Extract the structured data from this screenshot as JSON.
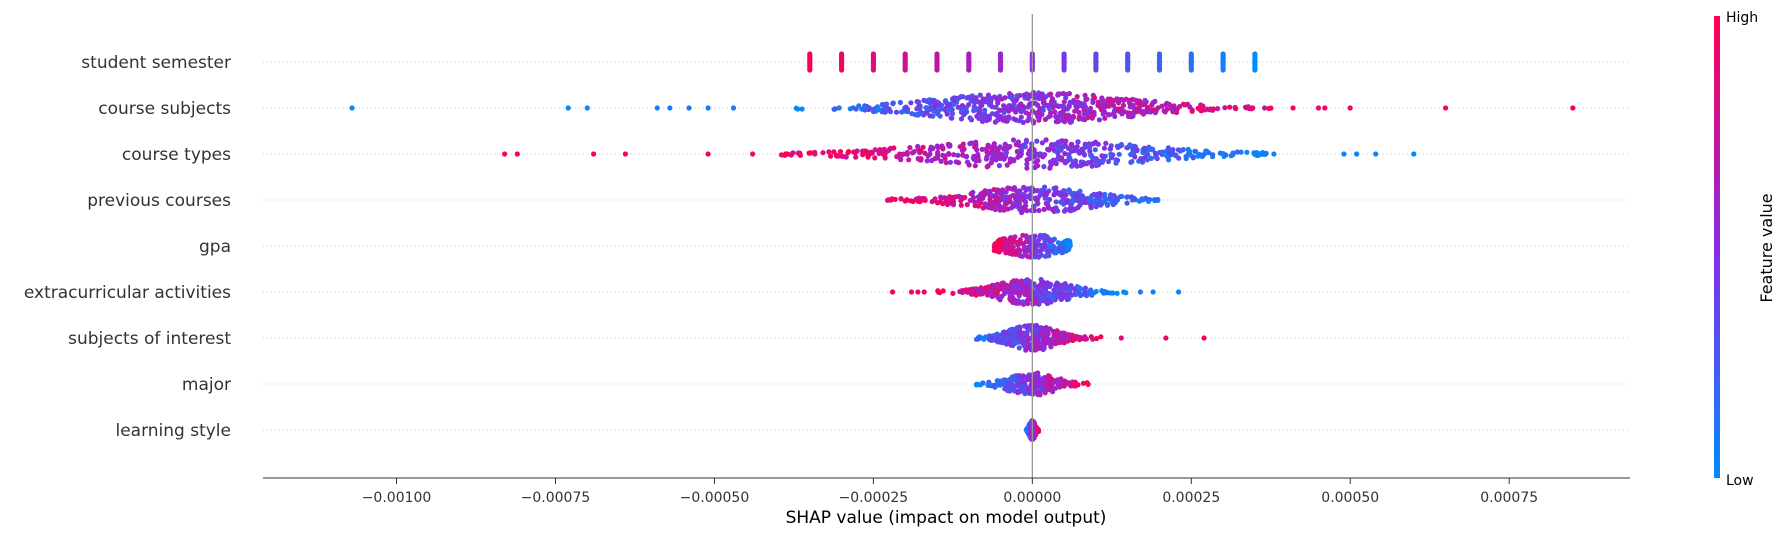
{
  "chart_data": {
    "type": "scatter",
    "subtype": "shap-beeswarm-summary",
    "xlabel": "SHAP value (impact on model output)",
    "xlim": [
      -0.00121,
      0.00094
    ],
    "x_ticks": [
      -0.001,
      -0.00075,
      -0.0005,
      -0.00025,
      0.0,
      0.00025,
      0.0005,
      0.00075
    ],
    "x_tick_labels": [
      "−0.00100",
      "−0.00075",
      "−0.00050",
      "−0.00025",
      "0.00000",
      "0.00025",
      "0.00050",
      "0.00075"
    ],
    "grid": false,
    "colorbar": {
      "title": "Feature value",
      "high_label": "High",
      "low_label": "Low",
      "low_color": "#008bfb",
      "mid_color": "#8a2be2",
      "high_color": "#ff0051"
    },
    "zero_line_color": "#999999",
    "features": [
      {
        "name": "student semester",
        "columns": [
          [
            -0.00035,
            1.0
          ],
          [
            -0.0003,
            0.93
          ],
          [
            -0.00025,
            0.86
          ],
          [
            -0.0002,
            0.79
          ],
          [
            -0.00015,
            0.72
          ],
          [
            -0.0001,
            0.64
          ],
          [
            -5e-05,
            0.57
          ],
          [
            0.0,
            0.5
          ],
          [
            5e-05,
            0.43
          ],
          [
            0.0001,
            0.36
          ],
          [
            0.00015,
            0.29
          ],
          [
            0.0002,
            0.21
          ],
          [
            0.00025,
            0.14
          ],
          [
            0.0003,
            0.07
          ],
          [
            0.00035,
            0.0
          ]
        ],
        "min": -0.00035,
        "max": 0.00035
      },
      {
        "name": "course subjects",
        "outliers": [
          [
            -0.00107,
            0.0
          ],
          [
            -0.00073,
            0.03
          ],
          [
            -0.0007,
            0.02
          ],
          [
            -0.00059,
            0.05
          ],
          [
            -0.00057,
            0.04
          ],
          [
            -0.00054,
            0.06
          ],
          [
            -0.00051,
            0.05
          ],
          [
            -0.00047,
            0.08
          ],
          [
            0.00041,
            0.95
          ],
          [
            0.00045,
            0.92
          ],
          [
            0.00046,
            0.96
          ],
          [
            0.0005,
            0.93
          ],
          [
            0.00065,
            0.98
          ],
          [
            0.00085,
            1.0
          ]
        ],
        "min": -0.00044,
        "max": 0.00038,
        "spread": 0.00016,
        "density": 2.2,
        "skew": 1
      },
      {
        "name": "course types",
        "outliers": [
          [
            -0.00083,
            1.0
          ],
          [
            -0.00081,
            0.98
          ],
          [
            -0.00069,
            0.96
          ],
          [
            -0.00064,
            0.97
          ],
          [
            -0.00051,
            0.94
          ],
          [
            -0.00044,
            0.92
          ],
          [
            0.00038,
            0.06
          ],
          [
            0.00049,
            0.04
          ],
          [
            0.00051,
            0.03
          ],
          [
            0.00054,
            0.02
          ],
          [
            0.0006,
            0.0
          ]
        ],
        "min": -0.0004,
        "max": 0.00037,
        "spread": 0.00018,
        "density": 1.8,
        "skew": -1
      },
      {
        "name": "previous courses",
        "outliers": [],
        "min": -0.00023,
        "max": 0.0002,
        "spread": 0.0001,
        "density": 1.4,
        "skew": -1
      },
      {
        "name": "gpa",
        "outliers": [],
        "min": -6e-05,
        "max": 6e-05,
        "spread": 5e-05,
        "density": 0.9,
        "skew": -1,
        "center_spike": true
      },
      {
        "name": "extracurricular activities",
        "outliers": [
          [
            -0.00022,
            0.95
          ],
          [
            -0.00019,
            0.92
          ],
          [
            -0.00018,
            0.94
          ],
          [
            -0.00017,
            0.93
          ],
          [
            0.00017,
            0.1
          ],
          [
            0.00019,
            0.08
          ],
          [
            0.00023,
            0.05
          ]
        ],
        "min": -0.00015,
        "max": 0.00015,
        "spread": 6e-05,
        "density": 1.3,
        "skew": -1
      },
      {
        "name": "subjects of interest",
        "outliers": [
          [
            0.00014,
            0.85
          ],
          [
            0.00021,
            0.9
          ],
          [
            0.00027,
            0.96
          ]
        ],
        "min": -9e-05,
        "max": 0.00012,
        "spread": 4e-05,
        "density": 1.3,
        "skew": 1
      },
      {
        "name": "major",
        "outliers": [],
        "min": -9e-05,
        "max": 9e-05,
        "spread": 4e-05,
        "density": 0.8,
        "skew": 1,
        "center_spike": true
      },
      {
        "name": "learning style",
        "outliers": [],
        "min": -1e-05,
        "max": 1e-05,
        "spread": 5e-06,
        "density": 0.4,
        "skew": 1,
        "center_spike": true
      }
    ]
  }
}
